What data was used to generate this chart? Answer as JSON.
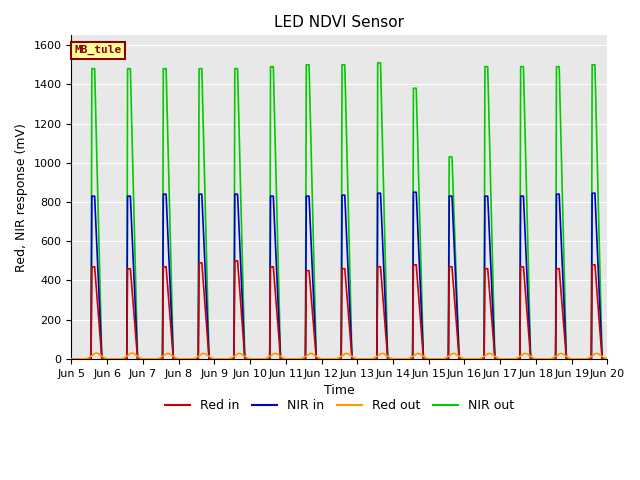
{
  "title": "LED NDVI Sensor",
  "xlabel": "Time",
  "ylabel": "Red, NIR response (mV)",
  "ylim": [
    0,
    1650
  ],
  "x_tick_labels": [
    "Jun 5",
    "Jun 6",
    "Jun 7",
    "Jun 8",
    "Jun 9",
    "Jun 10",
    "Jun 11",
    "Jun 12",
    "Jun 13",
    "Jun 14",
    "Jun 15",
    "Jun 16",
    "Jun 17",
    "Jun 18",
    "Jun 19",
    "Jun 20"
  ],
  "x_tick_positions": [
    0,
    1,
    2,
    3,
    4,
    5,
    6,
    7,
    8,
    9,
    10,
    11,
    12,
    13,
    14,
    15
  ],
  "label_text": "MB_tule",
  "label_bg": "#FFFF99",
  "label_border": "#8B0000",
  "label_text_color": "#8B0000",
  "colors": {
    "red_in": "#CC0000",
    "nir_in": "#0000CC",
    "red_out": "#FF9900",
    "nir_out": "#00CC00"
  },
  "legend_labels": [
    "Red in",
    "NIR in",
    "Red out",
    "NIR out"
  ],
  "plot_bg": "#E8E8E8",
  "fig_bg": "#FFFFFF",
  "red_in_peaks": [
    470,
    460,
    470,
    490,
    500,
    470,
    450,
    460,
    470,
    480,
    470,
    460,
    470,
    460,
    480
  ],
  "nir_in_peaks": [
    830,
    830,
    840,
    840,
    840,
    830,
    830,
    835,
    845,
    850,
    830,
    830,
    830,
    840,
    845
  ],
  "red_out_peaks": [
    30,
    30,
    28,
    28,
    28,
    28,
    28,
    28,
    28,
    28,
    28,
    28,
    28,
    28,
    28
  ],
  "nir_out_peaks": [
    1480,
    1480,
    1480,
    1480,
    1480,
    1490,
    1500,
    1500,
    1510,
    1380,
    1030,
    1490,
    1490,
    1490,
    1500
  ],
  "n_days": 15,
  "spike_start": 0.55,
  "spike_end": 0.85,
  "red_out_start": 0.45,
  "red_out_end": 0.95
}
